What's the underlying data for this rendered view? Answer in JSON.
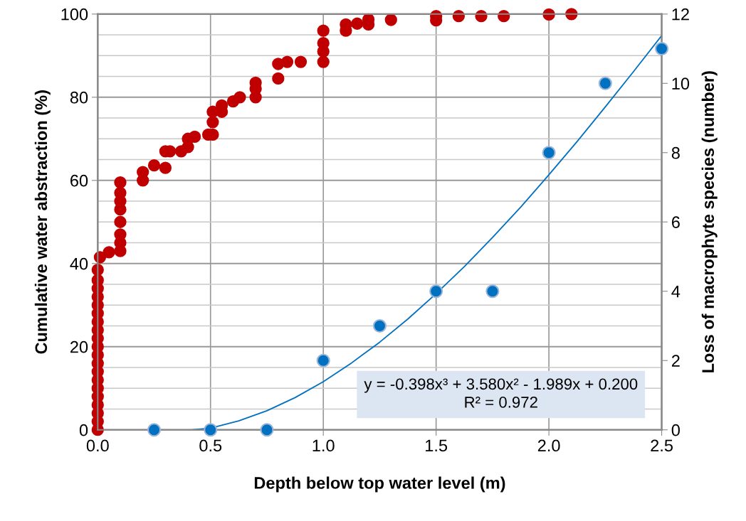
{
  "chart_data": {
    "type": "scatter",
    "xlabel": "Depth below top water level (m)",
    "ylabel": "Cumulative water abstraction (%)",
    "y2label": "Loss of macrophyte species (number)",
    "xlim": [
      0,
      2.5
    ],
    "xticks": [
      {
        "value": 0,
        "label": "0.0"
      },
      {
        "value": 0.5,
        "label": "0.5"
      },
      {
        "value": 1,
        "label": "1.0"
      },
      {
        "value": 1.5,
        "label": "1.5"
      },
      {
        "value": 2,
        "label": "2.0"
      },
      {
        "value": 2.5,
        "label": "2.5"
      }
    ],
    "ylim": [
      0,
      100
    ],
    "yticks": [
      0,
      {
        "value": 5,
        "label": null
      },
      {
        "value": 10,
        "label": null
      },
      {
        "value": 15,
        "label": null
      },
      20,
      {
        "value": 25,
        "label": null
      },
      {
        "value": 30,
        "label": null
      },
      {
        "value": 35,
        "label": null
      },
      40,
      {
        "value": 45,
        "label": null
      },
      {
        "value": 50,
        "label": null
      },
      {
        "value": 55,
        "label": null
      },
      60,
      {
        "value": 65,
        "label": null
      },
      {
        "value": 70,
        "label": null
      },
      {
        "value": 75,
        "label": null
      },
      80,
      {
        "value": 85,
        "label": null
      },
      {
        "value": 90,
        "label": null
      },
      {
        "value": 95,
        "label": null
      },
      100
    ],
    "y2lim": [
      0,
      12
    ],
    "y2ticks": [
      0,
      2,
      4,
      6,
      8,
      10,
      12
    ],
    "grid": true,
    "marker": "circle",
    "series": [
      {
        "color": "#c00000",
        "x": [
          0,
          0,
          0,
          0,
          0,
          0,
          0,
          0,
          0,
          0,
          0,
          0,
          0,
          0,
          0,
          0,
          0,
          0,
          0,
          0,
          0.01,
          0.05,
          0.1,
          0.1,
          0.1,
          0.1,
          0.1,
          0.1,
          0.1,
          0.1,
          0.2,
          0.2,
          0.25,
          0.3,
          0.3,
          0.32,
          0.37,
          0.4,
          0.4,
          0.43,
          0.49,
          0.51,
          0.51,
          0.51,
          0.55,
          0.55,
          0.6,
          0.63,
          0.7,
          0.7,
          0.7,
          0.8,
          0.8,
          0.84,
          0.9,
          1.0,
          1.0,
          1.0,
          1.0,
          1.1,
          1.1,
          1.15,
          1.2,
          1.2,
          1.3,
          1.5,
          1.5,
          1.6,
          1.7,
          1.8,
          2.0,
          2.1
        ],
        "values": [
          0,
          2,
          4,
          6,
          8,
          10,
          12,
          14,
          16,
          18,
          20,
          22,
          24,
          26,
          28,
          30,
          32,
          34,
          36,
          38.5,
          41.5,
          42.7,
          43,
          45,
          47,
          50,
          53,
          55,
          57,
          59.5,
          60,
          62,
          63.6,
          63,
          67,
          67,
          67,
          68,
          70,
          70.5,
          71,
          71,
          74,
          76.5,
          76.5,
          78,
          79,
          80,
          80,
          82,
          83.5,
          84.5,
          88,
          88.5,
          88.5,
          88.5,
          91,
          93,
          96,
          96,
          97.5,
          97.7,
          97.5,
          98.7,
          98.6,
          98.5,
          99.5,
          99.5,
          99.5,
          99.5,
          99.9,
          100
        ]
      },
      {
        "axis": "y2",
        "color": "#0070c0",
        "x": [
          0.25,
          0.5,
          0.75,
          1.0,
          1.25,
          1.5,
          1.75,
          2.0,
          2.25,
          2.5
        ],
        "values": [
          0,
          0,
          0,
          2,
          3,
          4,
          4,
          8,
          10,
          11
        ]
      },
      {
        "type": "line",
        "axis": "y2",
        "color": "#0070c0",
        "marker": "none",
        "x": [
          0.42,
          0.5,
          0.625,
          0.75,
          0.875,
          1.0,
          1.125,
          1.25,
          1.375,
          1.5,
          1.625,
          1.75,
          1.875,
          2.0,
          2.125,
          2.25,
          2.375,
          2.5
        ],
        "values": [
          0,
          0.05,
          0.26,
          0.55,
          0.93,
          1.39,
          1.93,
          2.53,
          3.2,
          3.93,
          4.71,
          5.55,
          6.43,
          7.36,
          8.32,
          9.32,
          10.34,
          11.38
        ]
      }
    ],
    "annotations": [
      "y = -0.398x³ + 3.580x² - 1.989x + 0.200",
      "R² = 0.972"
    ]
  }
}
